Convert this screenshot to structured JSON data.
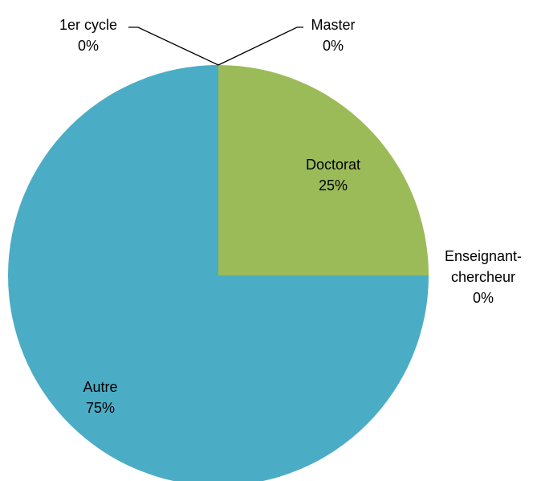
{
  "chart_data": {
    "type": "pie",
    "categories": [
      "1er cycle",
      "Master",
      "Doctorat",
      "Enseignant-chercheur",
      "Autre"
    ],
    "values": [
      0,
      0,
      25,
      0,
      75
    ],
    "value_labels": [
      "0%",
      "0%",
      "25%",
      "0%",
      "75%"
    ],
    "colors": [
      "#4f81bd",
      "#c0504d",
      "#9bbb59",
      "#8064a2",
      "#4bacc6"
    ]
  }
}
